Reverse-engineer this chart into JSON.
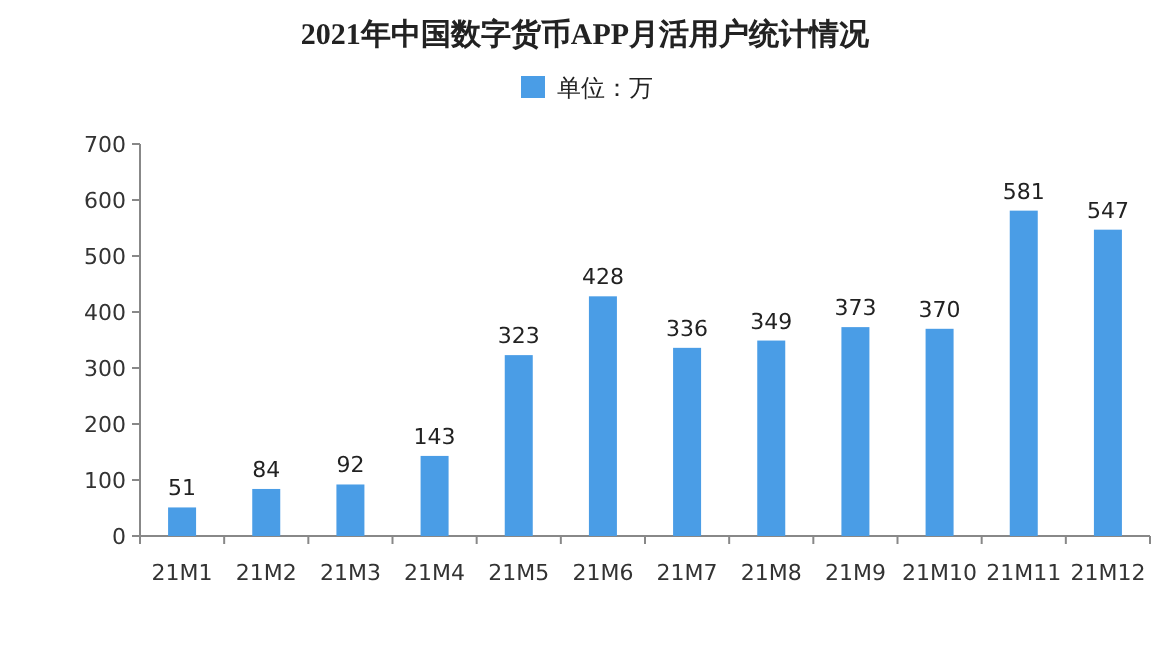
{
  "chart_data": {
    "type": "bar",
    "title": "2021年中国数字货币APP月活用户统计情况",
    "categories": [
      "21M1",
      "21M2",
      "21M3",
      "21M4",
      "21M5",
      "21M6",
      "21M7",
      "21M8",
      "21M9",
      "21M10",
      "21M11",
      "21M12"
    ],
    "series": [
      {
        "name": "单位：万",
        "color": "#4a9de6",
        "values": [
          51,
          84,
          92,
          143,
          323,
          428,
          336,
          349,
          373,
          370,
          581,
          547
        ]
      }
    ],
    "ylim": [
      0,
      700
    ],
    "yticks": [
      0,
      100,
      200,
      300,
      400,
      500,
      600,
      700
    ],
    "data_labels": true,
    "legend": "top",
    "grid": false
  }
}
